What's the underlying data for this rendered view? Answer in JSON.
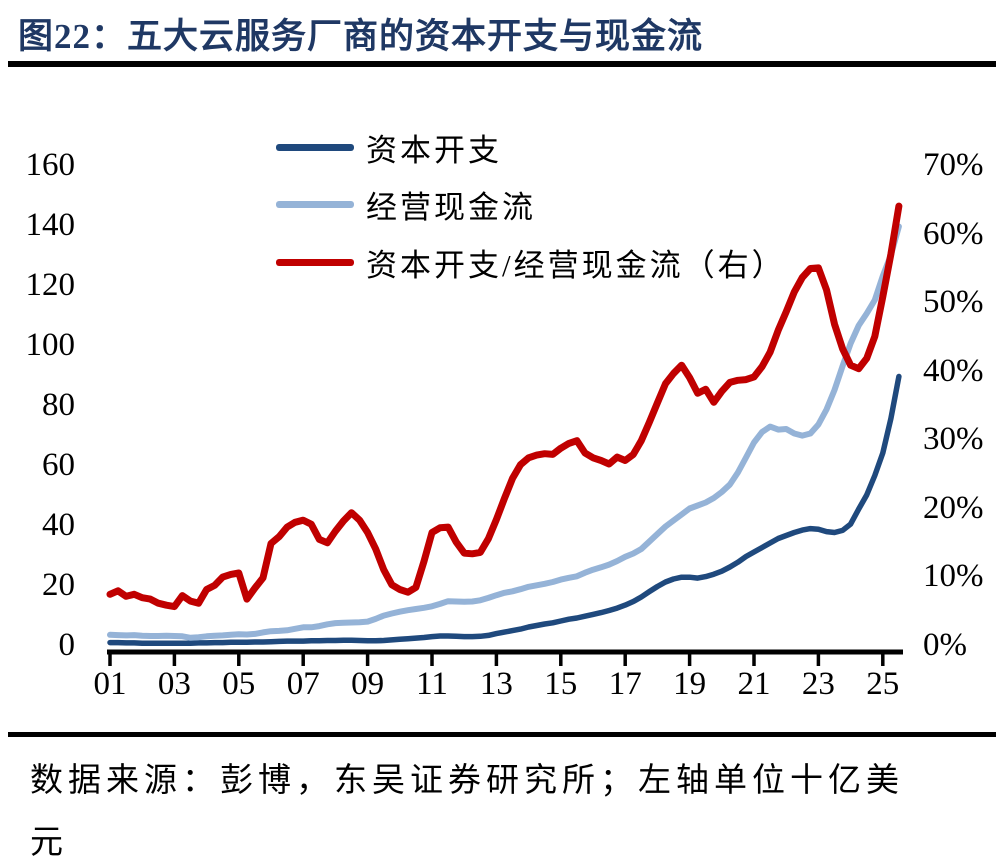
{
  "title": "图22：五大云服务厂商的资本开支与现金流",
  "source_note": {
    "line1": "数据来源：彭博，东吴证券研究所；左轴单位十亿美",
    "line2": "元"
  },
  "colors": {
    "title": "#1F3864",
    "capex_line": "#1F497D",
    "ocf_line": "#95B3D7",
    "ratio_line": "#C00000",
    "axis": "#000000"
  },
  "chart_data": {
    "type": "line",
    "title": "五大云服务厂商的资本开支与现金流",
    "x_start": 2001.0,
    "x_step": 0.25,
    "x_tick_labels": [
      "01",
      "03",
      "05",
      "07",
      "09",
      "11",
      "13",
      "15",
      "17",
      "19",
      "21",
      "23",
      "25"
    ],
    "left_axis": {
      "min": 0,
      "max": 160,
      "tick_step": 20,
      "tick_labels": [
        "160",
        "140",
        "120",
        "100",
        "80",
        "60",
        "40",
        "20",
        "0"
      ]
    },
    "right_axis": {
      "min": 0,
      "max": 70,
      "tick_step": 10,
      "tick_labels": [
        "70%",
        "60%",
        "50%",
        "40%",
        "30%",
        "20%",
        "10%",
        "0%"
      ]
    },
    "grid": false,
    "legend_position": "top-left",
    "series": [
      {
        "name": "资本开支",
        "axis": "left",
        "color": "#1F497D",
        "width": 5.5,
        "values": [
          0.8,
          0.8,
          0.7,
          0.7,
          0.6,
          0.6,
          0.6,
          0.6,
          0.6,
          0.6,
          0.6,
          0.7,
          0.7,
          0.8,
          0.8,
          0.9,
          0.9,
          0.9,
          1.0,
          1.0,
          1.1,
          1.2,
          1.3,
          1.3,
          1.3,
          1.4,
          1.4,
          1.5,
          1.5,
          1.6,
          1.6,
          1.5,
          1.4,
          1.4,
          1.5,
          1.7,
          1.9,
          2.1,
          2.3,
          2.5,
          2.8,
          3.0,
          3.0,
          2.9,
          2.8,
          2.8,
          2.9,
          3.2,
          3.8,
          4.3,
          4.8,
          5.3,
          6.0,
          6.5,
          7.0,
          7.4,
          8.0,
          8.6,
          9.0,
          9.6,
          10.2,
          10.8,
          11.5,
          12.3,
          13.3,
          14.5,
          16.0,
          17.8,
          19.5,
          21.0,
          22.0,
          22.6,
          22.6,
          22.3,
          22.8,
          23.6,
          24.6,
          26.0,
          27.6,
          29.5,
          31.0,
          32.5,
          34.0,
          35.5,
          36.5,
          37.5,
          38.3,
          38.8,
          38.6,
          37.8,
          37.5,
          38.2,
          40.3,
          45.3,
          50.0,
          56.5,
          64.0,
          75.5,
          89.5
        ]
      },
      {
        "name": "经营现金流",
        "axis": "left",
        "color": "#95B3D7",
        "width": 6,
        "values": [
          3.4,
          3.3,
          3.2,
          3.3,
          3.1,
          3.0,
          3.0,
          3.1,
          3.0,
          2.9,
          2.4,
          2.6,
          2.9,
          3.1,
          3.2,
          3.4,
          3.6,
          3.5,
          3.7,
          4.2,
          4.6,
          4.7,
          4.9,
          5.4,
          5.9,
          5.9,
          6.3,
          6.9,
          7.3,
          7.4,
          7.5,
          7.6,
          7.8,
          8.7,
          9.8,
          10.5,
          11.1,
          11.6,
          12.0,
          12.4,
          12.9,
          13.7,
          14.6,
          14.5,
          14.4,
          14.5,
          14.9,
          15.7,
          16.6,
          17.4,
          17.9,
          18.6,
          19.4,
          19.9,
          20.4,
          21.0,
          21.8,
          22.4,
          22.9,
          24.1,
          25.1,
          25.9,
          26.8,
          28.0,
          29.4,
          30.5,
          32.0,
          34.5,
          37.0,
          39.5,
          41.5,
          43.5,
          45.5,
          46.5,
          47.5,
          49.0,
          51.0,
          53.5,
          57.5,
          62.5,
          67.5,
          71.0,
          72.8,
          71.8,
          72.0,
          70.5,
          69.8,
          70.5,
          73.5,
          78.5,
          85.0,
          93.0,
          100.5,
          106.5,
          110.5,
          115.0,
          123.0,
          130.0,
          139.5
        ]
      },
      {
        "name": "资本开支/经营现金流（右）",
        "axis": "right",
        "color": "#C00000",
        "width": 7,
        "values": [
          7.4,
          7.9,
          7.1,
          7.4,
          6.9,
          6.7,
          6.1,
          5.8,
          5.6,
          7.2,
          6.4,
          6.1,
          8.1,
          8.7,
          9.9,
          10.3,
          10.5,
          6.7,
          8.3,
          9.8,
          14.8,
          15.8,
          17.2,
          17.9,
          18.2,
          17.6,
          15.4,
          14.9,
          16.6,
          18.1,
          19.3,
          18.2,
          16.4,
          14.0,
          11.0,
          8.8,
          8.1,
          7.7,
          8.4,
          12.2,
          16.4,
          17.1,
          17.2,
          15.0,
          13.4,
          13.3,
          13.5,
          15.5,
          18.3,
          21.4,
          24.3,
          26.3,
          27.3,
          27.7,
          27.9,
          27.8,
          28.7,
          29.4,
          29.8,
          28.0,
          27.3,
          26.9,
          26.4,
          27.4,
          26.9,
          27.8,
          29.8,
          32.5,
          35.3,
          38.1,
          39.6,
          40.8,
          39.0,
          36.7,
          37.3,
          35.4,
          37.0,
          38.3,
          38.6,
          38.7,
          39.1,
          40.6,
          42.7,
          45.9,
          48.6,
          51.5,
          53.6,
          54.9,
          55.0,
          51.8,
          46.8,
          43.2,
          40.8,
          40.3,
          41.8,
          45.0,
          50.8,
          57.0,
          64.0
        ]
      }
    ]
  }
}
